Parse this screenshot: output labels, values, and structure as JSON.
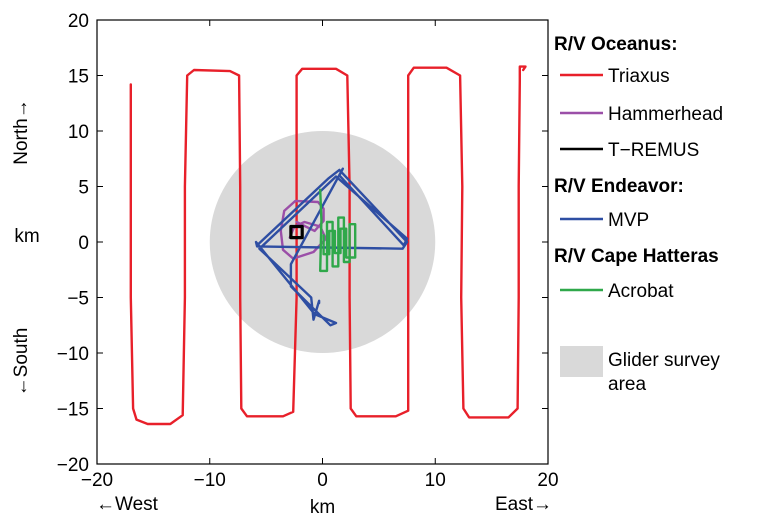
{
  "chart_data": {
    "type": "line",
    "title": "",
    "xlabel": "km",
    "ylabel": "km",
    "xlim": [
      -20,
      20
    ],
    "ylim": [
      -20,
      20
    ],
    "xticks": [
      -20,
      -10,
      0,
      10,
      20
    ],
    "yticks": [
      -20,
      -15,
      -10,
      -5,
      0,
      5,
      10,
      15,
      20
    ],
    "direction_labels": {
      "west": "←West",
      "east": "East→",
      "north": "North→",
      "south": "←South"
    },
    "glider_survey_area": {
      "center": [
        0,
        0
      ],
      "radius": 10,
      "color": "#d9d9d9"
    },
    "legend": {
      "position": "right",
      "groups": [
        {
          "heading": "R/V Oceanus:",
          "items": [
            {
              "name": "Triaxus",
              "color": "#e8202a"
            },
            {
              "name": "Hammerhead",
              "color": "#9b4fa8"
            },
            {
              "name": "T−REMUS",
              "color": "#000000"
            }
          ]
        },
        {
          "heading": "R/V Endeavor:",
          "items": [
            {
              "name": "MVP",
              "color": "#2e4ea3"
            }
          ]
        },
        {
          "heading": "R/V Cape Hatteras",
          "items": [
            {
              "name": "Acrobat",
              "color": "#2fa84a"
            }
          ]
        }
      ],
      "area_item": "Glider survey area"
    },
    "series": [
      {
        "name": "Triaxus",
        "color": "#e8202a",
        "x": [
          -17.0,
          -17.0,
          -17.0,
          -16.8,
          -16.5,
          -15.5,
          -13.5,
          -12.4,
          -12.2,
          -12.2,
          -12.0,
          -11.4,
          -8.2,
          -7.4,
          -7.3,
          -7.3,
          -7.2,
          -6.7,
          -3.5,
          -2.6,
          -2.3,
          -2.3,
          -2.3,
          -1.8,
          1.2,
          2.2,
          2.4,
          2.4,
          2.5,
          3.0,
          6.5,
          7.6,
          7.6,
          7.6,
          7.6,
          8.1,
          11.0,
          12.2,
          12.4,
          12.3,
          12.5,
          13.0,
          16.5,
          17.3,
          17.4,
          17.4,
          17.5,
          17.5,
          18.0,
          17.8
        ],
        "y": [
          14.2,
          5.0,
          -5.0,
          -15.0,
          -16.0,
          -16.4,
          -16.4,
          -15.6,
          -5.0,
          5.0,
          15.0,
          15.5,
          15.4,
          15.0,
          5.0,
          -5.0,
          -15.0,
          -15.7,
          -15.7,
          -15.3,
          -5.0,
          5.0,
          15.0,
          15.6,
          15.6,
          15.0,
          5.0,
          -5.0,
          -15.0,
          -15.7,
          -15.7,
          -15.2,
          -5.0,
          5.0,
          15.0,
          15.7,
          15.7,
          15.0,
          5.0,
          -5.0,
          -15.0,
          -15.8,
          -15.8,
          -15.0,
          -5.0,
          5.0,
          14.5,
          15.8,
          15.8,
          15.5
        ]
      },
      {
        "name": "Hammerhead",
        "color": "#9b4fa8",
        "x": [
          -2.3,
          -0.7,
          0.1,
          0.1,
          -0.4,
          -2.4,
          -3.4,
          -3.7,
          -3.5,
          -2.6,
          -0.8,
          0.3,
          -0.2,
          -1.6,
          -2.5,
          -2.9
        ],
        "y": [
          1.8,
          1.0,
          1.9,
          3.0,
          3.6,
          3.7,
          2.8,
          1.0,
          -0.7,
          -1.5,
          -0.9,
          0.3,
          1.4,
          1.8,
          1.4,
          0.4
        ]
      },
      {
        "name": "T−REMUS",
        "color": "#000000",
        "x": [
          -2.8,
          -1.8,
          -1.8,
          -2.8,
          -2.8
        ],
        "y": [
          1.4,
          1.4,
          0.4,
          0.4,
          1.4
        ]
      },
      {
        "name": "MVP",
        "color": "#2e4ea3",
        "x": [
          -5.8,
          0.5,
          1.5,
          7.5,
          7.1,
          -5.8,
          -5.9,
          -0.7,
          1.2,
          0.7,
          -2.8,
          -2.8,
          1.8,
          1.5,
          7.2,
          7.5,
          1.2,
          -5.6,
          -1.0,
          -0.8,
          -0.3,
          -0.3
        ],
        "y": [
          -0.3,
          5.7,
          6.5,
          0.0,
          -0.6,
          -0.4,
          0.0,
          -6.5,
          -7.3,
          -7.5,
          -4.0,
          -2.0,
          6.6,
          6.0,
          -0.3,
          0.3,
          5.9,
          -0.6,
          -5.0,
          -7.0,
          -5.3,
          -5.5
        ]
      },
      {
        "name": "Acrobat",
        "color": "#2fa84a",
        "x": [
          -0.2,
          -0.1,
          -0.2,
          0.4,
          0.4,
          0.9,
          0.9,
          1.4,
          1.4,
          1.9,
          1.9,
          2.4,
          2.4,
          2.9,
          2.9,
          2.1,
          2.1,
          1.6,
          1.6,
          1.1,
          1.1,
          0.6,
          0.6,
          0.1,
          0.1
        ],
        "y": [
          4.7,
          2.0,
          -2.6,
          -2.6,
          1.8,
          1.8,
          -2.2,
          -2.2,
          2.2,
          2.2,
          -1.8,
          -1.8,
          1.6,
          1.6,
          -1.4,
          -1.4,
          1.2,
          1.2,
          -1.0,
          -1.0,
          1.0,
          1.0,
          -1.1,
          -1.1,
          0.6
        ]
      }
    ]
  }
}
